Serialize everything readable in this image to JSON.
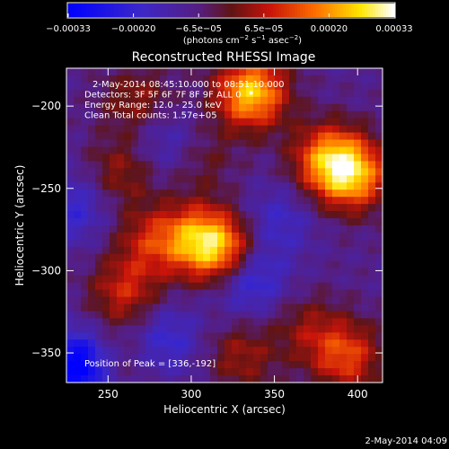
{
  "chart_data": {
    "type": "heatmap",
    "title": "Reconstructed RHESSI Image",
    "xlabel": "Heliocentric X (arcsec)",
    "ylabel": "Heliocentric Y (arcsec)",
    "xlim": [
      225,
      415
    ],
    "ylim": [
      -368,
      -177
    ],
    "x_ticks": [
      250,
      300,
      350,
      400
    ],
    "y_ticks": [
      -200,
      -250,
      -300,
      -350
    ],
    "grid": false,
    "colorbar": {
      "ticks": [
        "-0.00033",
        "-0.00020",
        "-6.5e-05",
        "6.5e-05",
        "0.00020",
        "0.00033"
      ],
      "unit_label": "(photons cm-2 s-1 asec-2)",
      "range": [
        -0.00033,
        0.00033
      ]
    },
    "annotations": [
      "2-May-2014 08:45:10.000 to 08:51:10.000",
      "Detectors: 3F 5F 6F 7F 8F 9F ALL 0",
      "Energy Range: 12.0 - 25.0 keV",
      "Clean    Total counts: 1.57e+05"
    ],
    "peak_label": "Position of Peak = [336,-192]",
    "peak": [
      336,
      -192
    ],
    "sources": [
      {
        "x": 336,
        "y": -192,
        "amp": 0.00033
      },
      {
        "x": 397,
        "y": -242,
        "amp": 0.00028
      },
      {
        "x": 382,
        "y": -232,
        "amp": 0.00024
      },
      {
        "x": 318,
        "y": -287,
        "amp": 0.00027
      },
      {
        "x": 301,
        "y": -280,
        "amp": 0.0002
      },
      {
        "x": 275,
        "y": -282,
        "amp": 0.00014
      },
      {
        "x": 260,
        "y": -313,
        "amp": 0.00016
      },
      {
        "x": 268,
        "y": -197,
        "amp": 0.00012
      },
      {
        "x": 258,
        "y": -240,
        "amp": 0.00012
      },
      {
        "x": 393,
        "y": -352,
        "amp": 0.0002
      },
      {
        "x": 370,
        "y": -335,
        "amp": 0.0001
      },
      {
        "x": 330,
        "y": -352,
        "amp": 0.00012
      },
      {
        "x": 252,
        "y": -355,
        "amp": 8e-05
      },
      {
        "x": 306,
        "y": -232,
        "amp": 8e-05
      }
    ],
    "negatives": [
      {
        "x": 232,
        "y": -358,
        "amp": -0.0003
      },
      {
        "x": 335,
        "y": -305,
        "amp": -0.00016
      },
      {
        "x": 285,
        "y": -342,
        "amp": -0.00012
      },
      {
        "x": 230,
        "y": -262,
        "amp": -0.00012
      },
      {
        "x": 285,
        "y": -222,
        "amp": -0.0001
      },
      {
        "x": 352,
        "y": -270,
        "amp": -0.0001
      }
    ],
    "background": -8e-05
  },
  "footer_timestamp": "2-May-2014 04:09",
  "colors": {
    "background": "#000000",
    "text": "#ffffff"
  }
}
